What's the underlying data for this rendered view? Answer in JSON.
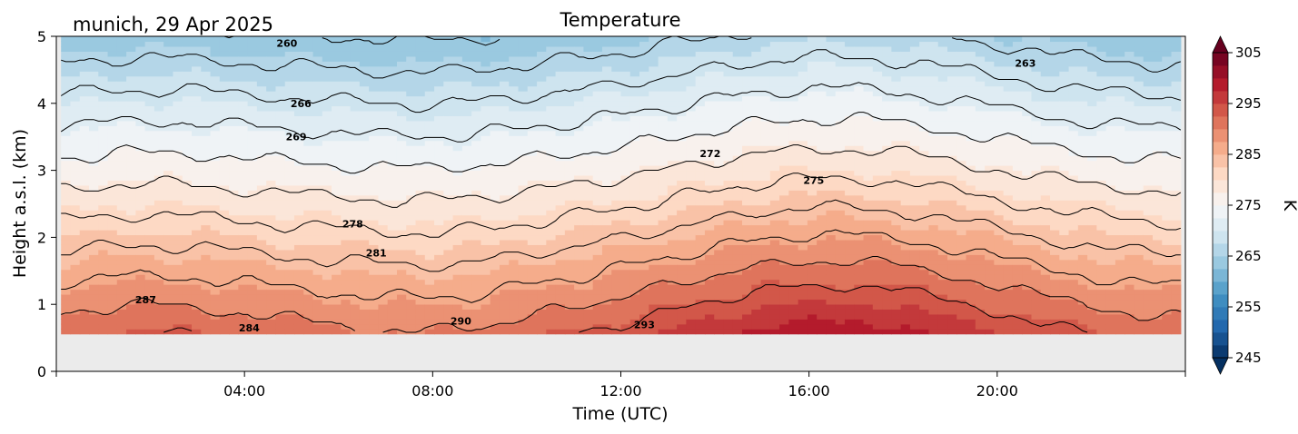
{
  "chart_data": {
    "type": "heatmap",
    "location_date": "munich, 29 Apr 2025",
    "title": "Temperature",
    "xlabel": "Time (UTC)",
    "ylabel": "Height a.s.l. (km)",
    "x_unit": "hours UTC",
    "xlim": [
      0,
      24
    ],
    "ylim": [
      0,
      5
    ],
    "x_ticks": [
      {
        "value": 4,
        "label": "04:00"
      },
      {
        "value": 8,
        "label": "08:00"
      },
      {
        "value": 12,
        "label": "12:00"
      },
      {
        "value": 16,
        "label": "16:00"
      },
      {
        "value": 20,
        "label": "20:00"
      }
    ],
    "y_ticks": [
      {
        "value": 0,
        "label": "0"
      },
      {
        "value": 1,
        "label": "1"
      },
      {
        "value": 2,
        "label": "2"
      },
      {
        "value": 3,
        "label": "3"
      },
      {
        "value": 4,
        "label": "4"
      },
      {
        "value": 5,
        "label": "5"
      }
    ],
    "data_range": {
      "x": [
        0.1,
        23.9
      ],
      "y": [
        0.56,
        5.0
      ]
    },
    "colorbar": {
      "label": "K",
      "colormap": "RdBu_r",
      "min": 245,
      "max": 305,
      "step": 2.5,
      "extend": "both",
      "ticks": [
        245,
        255,
        265,
        275,
        285,
        295,
        305
      ]
    },
    "contour_levels": [
      260,
      263,
      266,
      269,
      272,
      275,
      278,
      281,
      284,
      287,
      290,
      293
    ],
    "contour_labels": [
      {
        "text": "260",
        "x": 4.9,
        "y": 4.9
      },
      {
        "text": "263",
        "x": 20.6,
        "y": 4.6
      },
      {
        "text": "266",
        "x": 5.2,
        "y": 4.0
      },
      {
        "text": "269",
        "x": 5.1,
        "y": 3.5
      },
      {
        "text": "272",
        "x": 13.9,
        "y": 3.25
      },
      {
        "text": "275",
        "x": 16.1,
        "y": 2.85
      },
      {
        "text": "278",
        "x": 6.3,
        "y": 2.2
      },
      {
        "text": "281",
        "x": 6.8,
        "y": 1.77
      },
      {
        "text": "287",
        "x": 1.9,
        "y": 1.07
      },
      {
        "text": "284",
        "x": 4.1,
        "y": 0.65
      },
      {
        "text": "290",
        "x": 8.6,
        "y": 0.75
      },
      {
        "text": "293",
        "x": 12.5,
        "y": 0.7
      }
    ],
    "background_color": "#ebebeb",
    "contour_color": "#000000"
  }
}
